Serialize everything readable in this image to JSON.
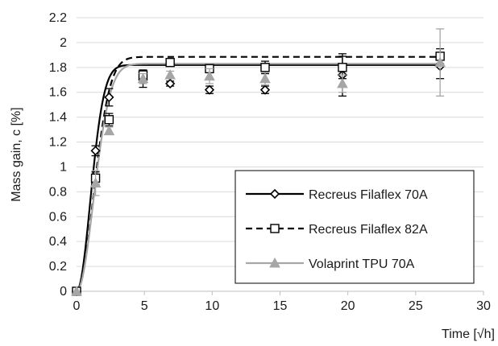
{
  "chart_data": {
    "type": "scatter",
    "title": "",
    "xlabel": "Time [√h]",
    "ylabel": "Mass gain, c [%]",
    "xlim": [
      0,
      30
    ],
    "ylim": [
      0,
      2.2
    ],
    "x_ticks": [
      0,
      5,
      10,
      15,
      20,
      25,
      30
    ],
    "y_ticks": [
      0,
      0.2,
      0.4,
      0.6,
      0.8,
      1,
      1.2,
      1.4,
      1.6,
      1.8,
      2,
      2.2
    ],
    "grid": "horizontal",
    "legend_position": "bottom-right",
    "series": [
      {
        "name": "Recreus Filaflex 70A",
        "color": "#000000",
        "marker": "diamond",
        "line_style": "solid",
        "points": [
          {
            "x": 0,
            "y": 0,
            "err": 0
          },
          {
            "x": 1.4,
            "y": 1.13,
            "err": 0.04
          },
          {
            "x": 2.4,
            "y": 1.56,
            "err": 0.07
          },
          {
            "x": 4.9,
            "y": 1.7,
            "err": 0.06
          },
          {
            "x": 6.9,
            "y": 1.67,
            "err": 0.02
          },
          {
            "x": 9.8,
            "y": 1.62,
            "err": 0.03
          },
          {
            "x": 13.9,
            "y": 1.62,
            "err": 0.03
          },
          {
            "x": 19.6,
            "y": 1.74,
            "err": 0.17
          },
          {
            "x": 26.8,
            "y": 1.81,
            "err": 0.1
          }
        ],
        "fit_curve": {
          "plateau": 1.82
        }
      },
      {
        "name": "Recreus Filaflex 82A",
        "color": "#000000",
        "marker": "square",
        "line_style": "dashed",
        "points": [
          {
            "x": 0,
            "y": 0,
            "err": 0
          },
          {
            "x": 1.4,
            "y": 0.91,
            "err": 0.05
          },
          {
            "x": 2.4,
            "y": 1.38,
            "err": 0.05
          },
          {
            "x": 4.9,
            "y": 1.74,
            "err": 0.04
          },
          {
            "x": 6.9,
            "y": 1.84,
            "err": 0.03
          },
          {
            "x": 9.8,
            "y": 1.79,
            "err": 0.03
          },
          {
            "x": 13.9,
            "y": 1.8,
            "err": 0.05
          },
          {
            "x": 19.6,
            "y": 1.8,
            "err": 0.09
          },
          {
            "x": 26.8,
            "y": 1.89,
            "err": 0.06
          }
        ],
        "fit_curve": {
          "plateau": 1.885
        }
      },
      {
        "name": "Volaprint TPU 70A",
        "color": "#a6a6a6",
        "marker": "triangle",
        "line_style": "solid",
        "points": [
          {
            "x": 0,
            "y": 0,
            "err": 0
          },
          {
            "x": 1.4,
            "y": 0.87,
            "err": 0.1
          },
          {
            "x": 2.4,
            "y": 1.29,
            "err": 0.03
          },
          {
            "x": 4.9,
            "y": 1.71,
            "err": 0.04
          },
          {
            "x": 6.9,
            "y": 1.74,
            "err": 0.03
          },
          {
            "x": 9.8,
            "y": 1.73,
            "err": 0.06
          },
          {
            "x": 13.9,
            "y": 1.71,
            "err": 0.05
          },
          {
            "x": 19.6,
            "y": 1.67,
            "err": 0.07
          },
          {
            "x": 26.8,
            "y": 1.84,
            "err": 0.27
          }
        ],
        "fit_curve": {
          "plateau": 1.83
        }
      }
    ]
  }
}
